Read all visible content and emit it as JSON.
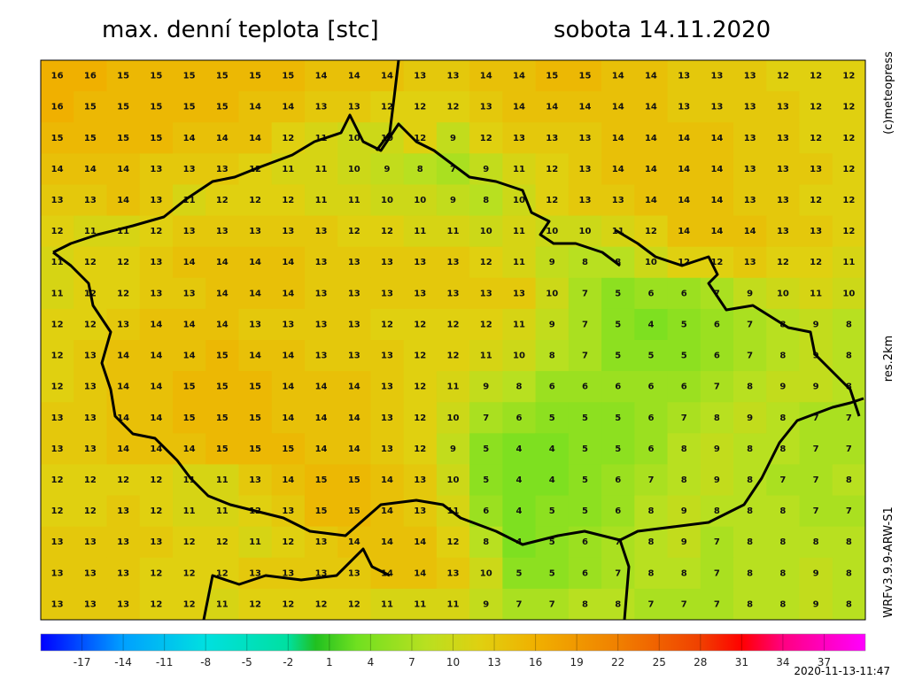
{
  "header": {
    "title": "max. denní teplota [stc]",
    "date": "sobota 14.11.2020"
  },
  "side": {
    "credit": "(c)meteopress",
    "resolution": "res.2km",
    "model": "WRFv3.9.9-ARW-S1"
  },
  "timestamp": "2020-11-13-11:47",
  "grid": [
    [
      16,
      16,
      15,
      15,
      15,
      15,
      15,
      15,
      14,
      14,
      14,
      13,
      13,
      14,
      14,
      15,
      15,
      14,
      14,
      13,
      13,
      13,
      12,
      12,
      12
    ],
    [
      16,
      15,
      15,
      15,
      15,
      15,
      14,
      14,
      13,
      13,
      12,
      12,
      12,
      13,
      14,
      14,
      14,
      14,
      14,
      13,
      13,
      13,
      13,
      12,
      12
    ],
    [
      15,
      15,
      15,
      15,
      14,
      14,
      14,
      12,
      11,
      10,
      10,
      12,
      9,
      12,
      13,
      13,
      13,
      14,
      14,
      14,
      14,
      13,
      13,
      12,
      12
    ],
    [
      14,
      14,
      14,
      13,
      13,
      13,
      12,
      11,
      11,
      10,
      9,
      8,
      7,
      9,
      11,
      12,
      13,
      14,
      14,
      14,
      14,
      13,
      13,
      13,
      12
    ],
    [
      13,
      13,
      14,
      13,
      11,
      12,
      12,
      12,
      11,
      11,
      10,
      10,
      9,
      8,
      10,
      12,
      13,
      13,
      14,
      14,
      14,
      13,
      13,
      12,
      12
    ],
    [
      12,
      11,
      11,
      12,
      13,
      13,
      13,
      13,
      13,
      12,
      12,
      11,
      11,
      10,
      11,
      10,
      10,
      11,
      12,
      14,
      14,
      14,
      13,
      13,
      12
    ],
    [
      11,
      12,
      12,
      13,
      14,
      14,
      14,
      14,
      13,
      13,
      13,
      13,
      13,
      12,
      11,
      9,
      8,
      8,
      10,
      12,
      12,
      13,
      12,
      12,
      11
    ],
    [
      11,
      12,
      12,
      13,
      13,
      14,
      14,
      14,
      13,
      13,
      13,
      13,
      13,
      13,
      13,
      10,
      7,
      5,
      6,
      6,
      7,
      9,
      10,
      11,
      10
    ],
    [
      12,
      12,
      13,
      14,
      14,
      14,
      13,
      13,
      13,
      13,
      12,
      12,
      12,
      12,
      11,
      9,
      7,
      5,
      4,
      5,
      6,
      7,
      8,
      9,
      8
    ],
    [
      12,
      13,
      14,
      14,
      14,
      15,
      14,
      14,
      13,
      13,
      13,
      12,
      12,
      11,
      10,
      8,
      7,
      5,
      5,
      5,
      6,
      7,
      8,
      9,
      8
    ],
    [
      12,
      13,
      14,
      14,
      15,
      15,
      15,
      14,
      14,
      14,
      13,
      12,
      11,
      9,
      8,
      6,
      6,
      6,
      6,
      6,
      7,
      8,
      9,
      9,
      8
    ],
    [
      13,
      13,
      14,
      14,
      15,
      15,
      15,
      14,
      14,
      14,
      13,
      12,
      10,
      7,
      6,
      5,
      5,
      5,
      6,
      7,
      8,
      9,
      8,
      7,
      7
    ],
    [
      13,
      13,
      14,
      14,
      14,
      15,
      15,
      15,
      14,
      14,
      13,
      12,
      9,
      5,
      4,
      4,
      5,
      5,
      6,
      8,
      9,
      8,
      8,
      7,
      7
    ],
    [
      12,
      12,
      12,
      12,
      11,
      11,
      13,
      14,
      15,
      15,
      14,
      13,
      10,
      5,
      4,
      4,
      5,
      6,
      7,
      8,
      9,
      8,
      7,
      7,
      8
    ],
    [
      12,
      12,
      13,
      12,
      11,
      11,
      12,
      13,
      15,
      15,
      14,
      13,
      11,
      6,
      4,
      5,
      5,
      6,
      8,
      9,
      8,
      8,
      8,
      7,
      7
    ],
    [
      13,
      13,
      13,
      13,
      12,
      12,
      11,
      12,
      13,
      14,
      14,
      14,
      12,
      8,
      4,
      5,
      6,
      7,
      8,
      9,
      7,
      8,
      8,
      8,
      8
    ],
    [
      13,
      13,
      13,
      12,
      12,
      12,
      13,
      13,
      13,
      13,
      14,
      14,
      13,
      10,
      5,
      5,
      6,
      7,
      8,
      8,
      7,
      8,
      8,
      9,
      8
    ],
    [
      13,
      13,
      13,
      12,
      12,
      11,
      12,
      12,
      12,
      12,
      11,
      11,
      11,
      9,
      7,
      7,
      8,
      8,
      7,
      7,
      7,
      8,
      8,
      9,
      8
    ]
  ],
  "colorbar": {
    "lim": [
      -20,
      40
    ],
    "ticks": [
      -17,
      -14,
      -11,
      -8,
      -5,
      -2,
      1,
      4,
      7,
      10,
      13,
      16,
      19,
      22,
      25,
      28,
      31,
      34,
      37
    ],
    "stops": [
      {
        "value": -20,
        "color": "#0000ff"
      },
      {
        "value": -14,
        "color": "#00a0ff"
      },
      {
        "value": -8,
        "color": "#00e0e0"
      },
      {
        "value": -2,
        "color": "#00e0a0"
      },
      {
        "value": 0,
        "color": "#20c020"
      },
      {
        "value": 3,
        "color": "#70e020"
      },
      {
        "value": 8,
        "color": "#b8e020"
      },
      {
        "value": 12,
        "color": "#e0d010"
      },
      {
        "value": 16,
        "color": "#f0b000"
      },
      {
        "value": 22,
        "color": "#f08000"
      },
      {
        "value": 28,
        "color": "#f04000"
      },
      {
        "value": 31,
        "color": "#ff0000"
      },
      {
        "value": 34,
        "color": "#ff0080"
      },
      {
        "value": 40,
        "color": "#ff00ff"
      }
    ]
  }
}
